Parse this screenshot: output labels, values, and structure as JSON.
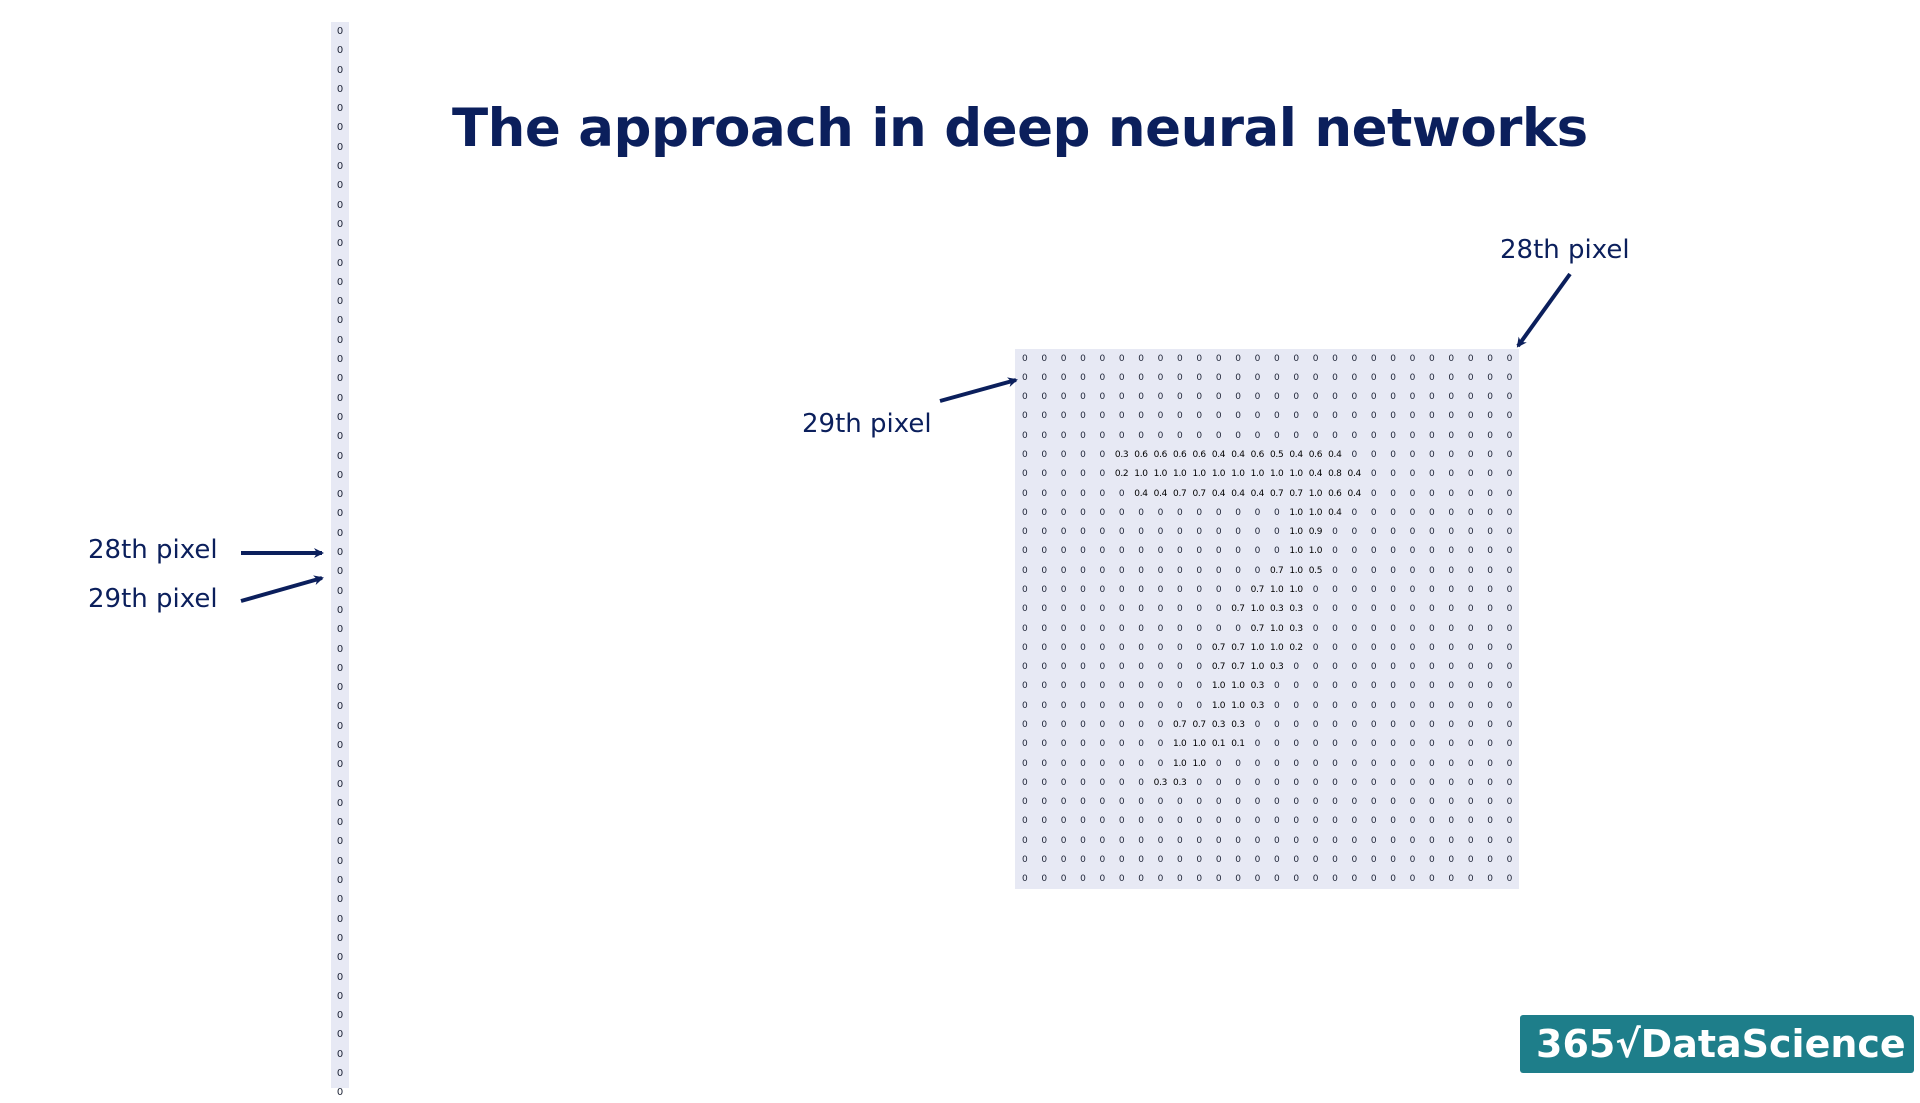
{
  "title": "The approach in deep neural networks",
  "labels": {
    "left_28": "28th pixel",
    "left_29": "29th pixel",
    "grid_29": "29th pixel",
    "grid_28": "28th pixel"
  },
  "column_vector": {
    "values": [
      "0",
      "0",
      "0",
      "0",
      "0",
      "0",
      "0",
      "0",
      "0",
      "0",
      "0",
      "0",
      "0",
      "0",
      "0",
      "0",
      "0",
      "0",
      "0",
      "0",
      "0",
      "0",
      "0",
      "0",
      "0",
      "0",
      "0",
      "0",
      "0",
      "0",
      "0",
      "0",
      "0",
      "0",
      "0",
      "0",
      "0",
      "0",
      "0",
      "0",
      "0",
      "0",
      "0",
      "0",
      "0",
      "0",
      "0",
      "0",
      "0",
      "0",
      "0",
      "0",
      "0",
      "0",
      "0",
      "0"
    ]
  },
  "pixel_grid": {
    "rows": [
      [
        "0",
        "0",
        "0",
        "0",
        "0",
        "0",
        "0",
        "0",
        "0",
        "0",
        "0",
        "0",
        "0",
        "0",
        "0",
        "0",
        "0",
        "0",
        "0",
        "0",
        "0",
        "0",
        "0",
        "0",
        "0",
        "0"
      ],
      [
        "0",
        "0",
        "0",
        "0",
        "0",
        "0",
        "0",
        "0",
        "0",
        "0",
        "0",
        "0",
        "0",
        "0",
        "0",
        "0",
        "0",
        "0",
        "0",
        "0",
        "0",
        "0",
        "0",
        "0",
        "0",
        "0"
      ],
      [
        "0",
        "0",
        "0",
        "0",
        "0",
        "0",
        "0",
        "0",
        "0",
        "0",
        "0",
        "0",
        "0",
        "0",
        "0",
        "0",
        "0",
        "0",
        "0",
        "0",
        "0",
        "0",
        "0",
        "0",
        "0",
        "0"
      ],
      [
        "0",
        "0",
        "0",
        "0",
        "0",
        "0",
        "0",
        "0",
        "0",
        "0",
        "0",
        "0",
        "0",
        "0",
        "0",
        "0",
        "0",
        "0",
        "0",
        "0",
        "0",
        "0",
        "0",
        "0",
        "0",
        "0"
      ],
      [
        "0",
        "0",
        "0",
        "0",
        "0",
        "0",
        "0",
        "0",
        "0",
        "0",
        "0",
        "0",
        "0",
        "0",
        "0",
        "0",
        "0",
        "0",
        "0",
        "0",
        "0",
        "0",
        "0",
        "0",
        "0",
        "0"
      ],
      [
        "0",
        "0",
        "0",
        "0",
        "0",
        "0.3",
        "0.6",
        "0.6",
        "0.6",
        "0.6",
        "0.4",
        "0.4",
        "0.6",
        "0.5",
        "0.4",
        "0.6",
        "0.4",
        "0",
        "0",
        "0",
        "0",
        "0",
        "0",
        "0",
        "0",
        "0"
      ],
      [
        "0",
        "0",
        "0",
        "0",
        "0",
        "0.2",
        "1.0",
        "1.0",
        "1.0",
        "1.0",
        "1.0",
        "1.0",
        "1.0",
        "1.0",
        "1.0",
        "0.4",
        "0.8",
        "0.4",
        "0",
        "0",
        "0",
        "0",
        "0",
        "0",
        "0",
        "0"
      ],
      [
        "0",
        "0",
        "0",
        "0",
        "0",
        "0",
        "0.4",
        "0.4",
        "0.7",
        "0.7",
        "0.4",
        "0.4",
        "0.4",
        "0.7",
        "0.7",
        "1.0",
        "0.6",
        "0.4",
        "0",
        "0",
        "0",
        "0",
        "0",
        "0",
        "0",
        "0"
      ],
      [
        "0",
        "0",
        "0",
        "0",
        "0",
        "0",
        "0",
        "0",
        "0",
        "0",
        "0",
        "0",
        "0",
        "0",
        "1.0",
        "1.0",
        "0.4",
        "0",
        "0",
        "0",
        "0",
        "0",
        "0",
        "0",
        "0",
        "0"
      ],
      [
        "0",
        "0",
        "0",
        "0",
        "0",
        "0",
        "0",
        "0",
        "0",
        "0",
        "0",
        "0",
        "0",
        "0",
        "1.0",
        "0.9",
        "0",
        "0",
        "0",
        "0",
        "0",
        "0",
        "0",
        "0",
        "0",
        "0"
      ],
      [
        "0",
        "0",
        "0",
        "0",
        "0",
        "0",
        "0",
        "0",
        "0",
        "0",
        "0",
        "0",
        "0",
        "0",
        "1.0",
        "1.0",
        "0",
        "0",
        "0",
        "0",
        "0",
        "0",
        "0",
        "0",
        "0",
        "0"
      ],
      [
        "0",
        "0",
        "0",
        "0",
        "0",
        "0",
        "0",
        "0",
        "0",
        "0",
        "0",
        "0",
        "0",
        "0.7",
        "1.0",
        "0.5",
        "0",
        "0",
        "0",
        "0",
        "0",
        "0",
        "0",
        "0",
        "0",
        "0"
      ],
      [
        "0",
        "0",
        "0",
        "0",
        "0",
        "0",
        "0",
        "0",
        "0",
        "0",
        "0",
        "0",
        "0.7",
        "1.0",
        "1.0",
        "0",
        "0",
        "0",
        "0",
        "0",
        "0",
        "0",
        "0",
        "0",
        "0",
        "0"
      ],
      [
        "0",
        "0",
        "0",
        "0",
        "0",
        "0",
        "0",
        "0",
        "0",
        "0",
        "0",
        "0.7",
        "1.0",
        "0.3",
        "0.3",
        "0",
        "0",
        "0",
        "0",
        "0",
        "0",
        "0",
        "0",
        "0",
        "0",
        "0"
      ],
      [
        "0",
        "0",
        "0",
        "0",
        "0",
        "0",
        "0",
        "0",
        "0",
        "0",
        "0",
        "0",
        "0.7",
        "1.0",
        "0.3",
        "0",
        "0",
        "0",
        "0",
        "0",
        "0",
        "0",
        "0",
        "0",
        "0",
        "0"
      ],
      [
        "0",
        "0",
        "0",
        "0",
        "0",
        "0",
        "0",
        "0",
        "0",
        "0",
        "0.7",
        "0.7",
        "1.0",
        "1.0",
        "0.2",
        "0",
        "0",
        "0",
        "0",
        "0",
        "0",
        "0",
        "0",
        "0",
        "0",
        "0"
      ],
      [
        "0",
        "0",
        "0",
        "0",
        "0",
        "0",
        "0",
        "0",
        "0",
        "0",
        "0.7",
        "0.7",
        "1.0",
        "0.3",
        "0",
        "0",
        "0",
        "0",
        "0",
        "0",
        "0",
        "0",
        "0",
        "0",
        "0",
        "0"
      ],
      [
        "0",
        "0",
        "0",
        "0",
        "0",
        "0",
        "0",
        "0",
        "0",
        "0",
        "1.0",
        "1.0",
        "0.3",
        "0",
        "0",
        "0",
        "0",
        "0",
        "0",
        "0",
        "0",
        "0",
        "0",
        "0",
        "0",
        "0"
      ],
      [
        "0",
        "0",
        "0",
        "0",
        "0",
        "0",
        "0",
        "0",
        "0",
        "0",
        "1.0",
        "1.0",
        "0.3",
        "0",
        "0",
        "0",
        "0",
        "0",
        "0",
        "0",
        "0",
        "0",
        "0",
        "0",
        "0",
        "0"
      ],
      [
        "0",
        "0",
        "0",
        "0",
        "0",
        "0",
        "0",
        "0",
        "0.7",
        "0.7",
        "0.3",
        "0.3",
        "0",
        "0",
        "0",
        "0",
        "0",
        "0",
        "0",
        "0",
        "0",
        "0",
        "0",
        "0",
        "0",
        "0"
      ],
      [
        "0",
        "0",
        "0",
        "0",
        "0",
        "0",
        "0",
        "0",
        "1.0",
        "1.0",
        "0.1",
        "0.1",
        "0",
        "0",
        "0",
        "0",
        "0",
        "0",
        "0",
        "0",
        "0",
        "0",
        "0",
        "0",
        "0",
        "0"
      ],
      [
        "0",
        "0",
        "0",
        "0",
        "0",
        "0",
        "0",
        "0",
        "1.0",
        "1.0",
        "0",
        "0",
        "0",
        "0",
        "0",
        "0",
        "0",
        "0",
        "0",
        "0",
        "0",
        "0",
        "0",
        "0",
        "0",
        "0"
      ],
      [
        "0",
        "0",
        "0",
        "0",
        "0",
        "0",
        "0",
        "0.3",
        "0.3",
        "0",
        "0",
        "0",
        "0",
        "0",
        "0",
        "0",
        "0",
        "0",
        "0",
        "0",
        "0",
        "0",
        "0",
        "0",
        "0",
        "0"
      ],
      [
        "0",
        "0",
        "0",
        "0",
        "0",
        "0",
        "0",
        "0",
        "0",
        "0",
        "0",
        "0",
        "0",
        "0",
        "0",
        "0",
        "0",
        "0",
        "0",
        "0",
        "0",
        "0",
        "0",
        "0",
        "0",
        "0"
      ],
      [
        "0",
        "0",
        "0",
        "0",
        "0",
        "0",
        "0",
        "0",
        "0",
        "0",
        "0",
        "0",
        "0",
        "0",
        "0",
        "0",
        "0",
        "0",
        "0",
        "0",
        "0",
        "0",
        "0",
        "0",
        "0",
        "0"
      ],
      [
        "0",
        "0",
        "0",
        "0",
        "0",
        "0",
        "0",
        "0",
        "0",
        "0",
        "0",
        "0",
        "0",
        "0",
        "0",
        "0",
        "0",
        "0",
        "0",
        "0",
        "0",
        "0",
        "0",
        "0",
        "0",
        "0"
      ],
      [
        "0",
        "0",
        "0",
        "0",
        "0",
        "0",
        "0",
        "0",
        "0",
        "0",
        "0",
        "0",
        "0",
        "0",
        "0",
        "0",
        "0",
        "0",
        "0",
        "0",
        "0",
        "0",
        "0",
        "0",
        "0",
        "0"
      ],
      [
        "0",
        "0",
        "0",
        "0",
        "0",
        "0",
        "0",
        "0",
        "0",
        "0",
        "0",
        "0",
        "0",
        "0",
        "0",
        "0",
        "0",
        "0",
        "0",
        "0",
        "0",
        "0",
        "0",
        "0",
        "0",
        "0"
      ]
    ]
  },
  "logo": {
    "text": "365√DataScience"
  },
  "colors": {
    "text": "#0b1f5c",
    "cell_bg": "#e7e9f4",
    "logo_bg": "#1e7e8a"
  }
}
